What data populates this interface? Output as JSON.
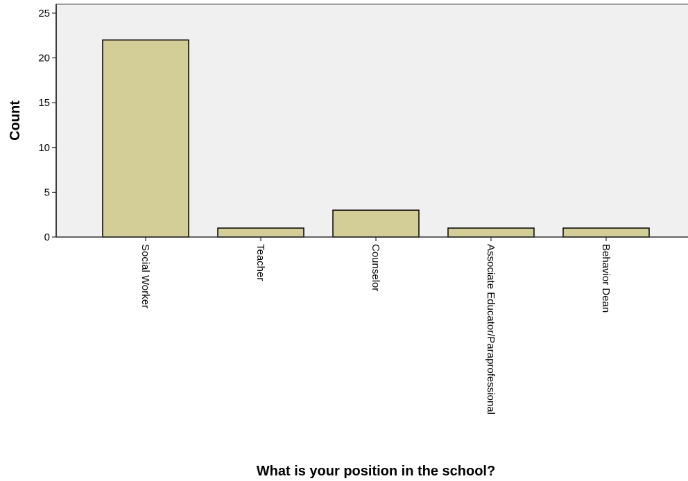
{
  "chart_data": {
    "type": "bar",
    "title": "",
    "xlabel": "What is your position in the school?",
    "ylabel": "Count",
    "categories": [
      "Social Worker",
      "Teacher",
      "Counselor",
      "Associate Educator/Paraprofessional",
      "Behavior Dean"
    ],
    "values": [
      22,
      1,
      3,
      1,
      1
    ],
    "ylim": [
      0,
      26
    ],
    "yticks": [
      0,
      5,
      10,
      15,
      20,
      25
    ],
    "grid": false,
    "legend": "none",
    "colors": {
      "plot_background": "#f0f0f0",
      "bar_fill": "#d3ce97",
      "bar_stroke": "#000000"
    }
  }
}
